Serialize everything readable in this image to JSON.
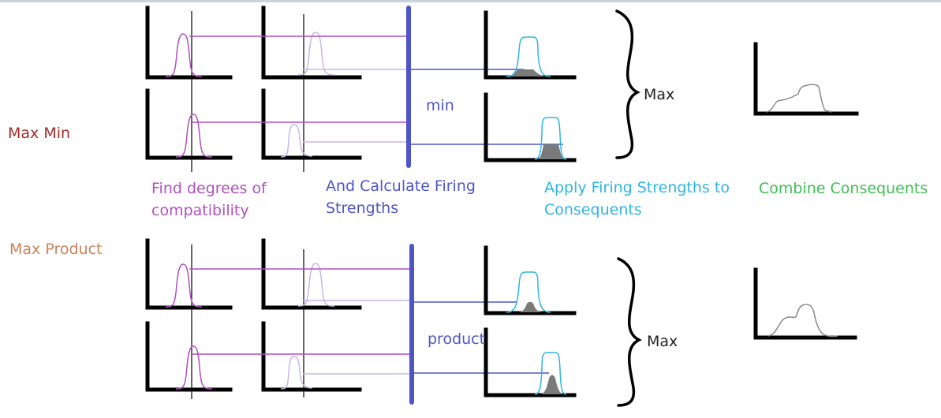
{
  "labels": {
    "max_min": "Max Min",
    "max_product": "Max  Product",
    "find_line1": "Find degrees of",
    "find_line2": "compatibility",
    "firing_line1": "And Calculate Firing",
    "firing_line2": "Strengths",
    "apply_line1": "Apply Firing Strengths to",
    "apply_line2": "Consequents",
    "combine": "Combine Consequents",
    "min": "min",
    "product": "product",
    "max_top": "Max",
    "max_bottom": "Max"
  },
  "colors": {
    "axis": "#000000",
    "input_curve": "#b04fc0",
    "input_curve_light": "#c8b6e6",
    "firing_bar": "#4f55c8",
    "consequent_curve": "#2fb4e6",
    "shaded_area": "#7a7a7a",
    "combined_curve": "#8a8a8a"
  }
}
